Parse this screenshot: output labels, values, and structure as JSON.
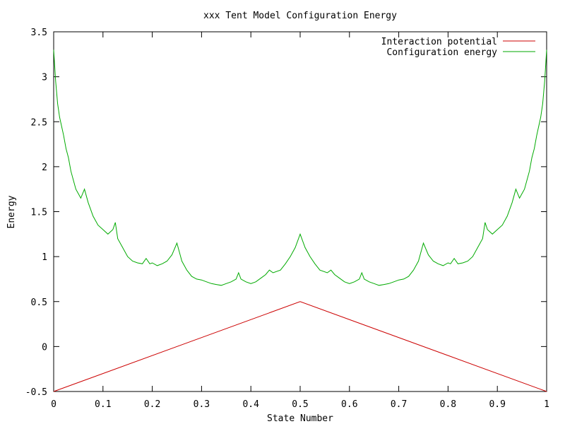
{
  "chart_data": {
    "type": "line",
    "title": "xxx Tent Model Configuration Energy",
    "xlabel": "State Number",
    "ylabel": "Energy",
    "xlim": [
      0,
      1
    ],
    "ylim": [
      -0.5,
      3.5
    ],
    "xticks": [
      0,
      0.1,
      0.2,
      0.3,
      0.4,
      0.5,
      0.6,
      0.7,
      0.8,
      0.9,
      1
    ],
    "xtick_labels": [
      "0",
      "0.1",
      "0.2",
      "0.3",
      "0.4",
      "0.5",
      "0.6",
      "0.7",
      "0.8",
      "0.9",
      "1"
    ],
    "yticks": [
      -0.5,
      0,
      0.5,
      1,
      1.5,
      2,
      2.5,
      3,
      3.5
    ],
    "ytick_labels": [
      "-0.5",
      "0",
      "0.5",
      "1",
      "1.5",
      "2",
      "2.5",
      "3",
      "3.5"
    ],
    "grid": false,
    "legend_position": "top-right",
    "series": [
      {
        "name": "Interaction potential",
        "color": "#cc0000",
        "x": [
          0,
          0.5,
          1
        ],
        "y": [
          -0.5,
          0.5,
          -0.5
        ]
      },
      {
        "name": "Configuration energy",
        "color": "#00aa00",
        "x": [
          0,
          0.004,
          0.008,
          0.012,
          0.016,
          0.02,
          0.025,
          0.03,
          0.035,
          0.04,
          0.045,
          0.05,
          0.055,
          0.0625,
          0.07,
          0.08,
          0.09,
          0.1,
          0.11,
          0.12,
          0.125,
          0.13,
          0.14,
          0.15,
          0.16,
          0.17,
          0.18,
          0.1875,
          0.195,
          0.2,
          0.21,
          0.22,
          0.23,
          0.24,
          0.25,
          0.26,
          0.27,
          0.28,
          0.29,
          0.3,
          0.31,
          0.32,
          0.33,
          0.34,
          0.35,
          0.36,
          0.37,
          0.375,
          0.38,
          0.39,
          0.4,
          0.41,
          0.42,
          0.43,
          0.4375,
          0.445,
          0.46,
          0.47,
          0.48,
          0.49,
          0.5,
          0.51,
          0.52,
          0.53,
          0.54,
          0.555,
          0.5625,
          0.57,
          0.58,
          0.59,
          0.6,
          0.61,
          0.62,
          0.625,
          0.63,
          0.64,
          0.65,
          0.66,
          0.67,
          0.68,
          0.69,
          0.7,
          0.71,
          0.72,
          0.73,
          0.74,
          0.75,
          0.76,
          0.77,
          0.78,
          0.79,
          0.8,
          0.805,
          0.8125,
          0.82,
          0.83,
          0.84,
          0.85,
          0.86,
          0.87,
          0.875,
          0.88,
          0.89,
          0.9,
          0.91,
          0.92,
          0.93,
          0.9375,
          0.945,
          0.95,
          0.955,
          0.96,
          0.965,
          0.97,
          0.975,
          0.98,
          0.984,
          0.988,
          0.992,
          0.996,
          1
        ],
        "y": [
          3.3,
          2.95,
          2.7,
          2.55,
          2.45,
          2.35,
          2.2,
          2.1,
          1.95,
          1.85,
          1.75,
          1.7,
          1.65,
          1.75,
          1.6,
          1.45,
          1.35,
          1.3,
          1.25,
          1.3,
          1.38,
          1.2,
          1.1,
          1.0,
          0.95,
          0.93,
          0.92,
          0.98,
          0.92,
          0.93,
          0.9,
          0.92,
          0.95,
          1.02,
          1.15,
          0.95,
          0.85,
          0.78,
          0.75,
          0.74,
          0.72,
          0.7,
          0.69,
          0.68,
          0.7,
          0.72,
          0.75,
          0.82,
          0.75,
          0.72,
          0.7,
          0.72,
          0.76,
          0.8,
          0.85,
          0.82,
          0.85,
          0.92,
          1.0,
          1.1,
          1.25,
          1.1,
          1.0,
          0.92,
          0.85,
          0.82,
          0.85,
          0.8,
          0.76,
          0.72,
          0.7,
          0.72,
          0.75,
          0.82,
          0.75,
          0.72,
          0.7,
          0.68,
          0.69,
          0.7,
          0.72,
          0.74,
          0.75,
          0.78,
          0.85,
          0.95,
          1.15,
          1.02,
          0.95,
          0.92,
          0.9,
          0.93,
          0.92,
          0.98,
          0.92,
          0.93,
          0.95,
          1.0,
          1.1,
          1.2,
          1.38,
          1.3,
          1.25,
          1.3,
          1.35,
          1.45,
          1.6,
          1.75,
          1.65,
          1.7,
          1.75,
          1.85,
          1.95,
          2.1,
          2.2,
          2.35,
          2.45,
          2.55,
          2.7,
          2.95,
          3.3
        ]
      }
    ]
  }
}
